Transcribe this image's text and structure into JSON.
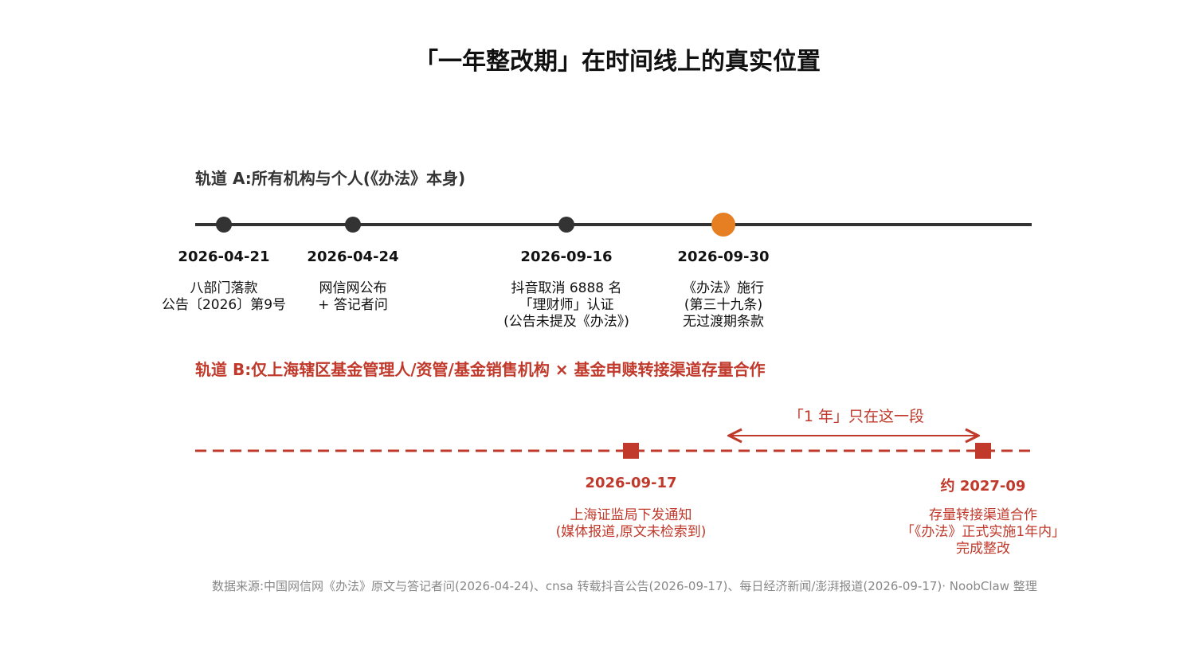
{
  "title": "「一年整改期」在时间线上的真实位置",
  "track_a": {
    "label": "轨道 A:所有机构与个人(《办法》本身)",
    "events": [
      {
        "date": "2026-04-21",
        "desc": [
          "八部门落款",
          "公告〔2026〕第9号"
        ]
      },
      {
        "date": "2026-04-24",
        "desc": [
          "网信网公布",
          "+ 答记者问"
        ]
      },
      {
        "date": "2026-09-16",
        "desc": [
          "抖音取消 6888 名",
          "「理财师」认证",
          "(公告未提及《办法》)"
        ]
      },
      {
        "date": "2026-09-30",
        "desc": [
          "《办法》施行",
          "(第三十九条)",
          "无过渡期条款"
        ],
        "highlight": true
      }
    ]
  },
  "track_b": {
    "label": "轨道 B:仅上海辖区基金管理人/资管/基金销售机构 × 基金申赎转接渠道存量合作",
    "span_label": "「1 年」只在这一段",
    "events": [
      {
        "date": "2026-09-17",
        "desc": [
          "上海证监局下发通知",
          "(媒体报道,原文未检索到)"
        ]
      },
      {
        "date": "约 2027-09",
        "desc": [
          "存量转接渠道合作",
          "「《办法》正式实施1年内」",
          "完成整改"
        ]
      }
    ]
  },
  "colors": {
    "dark": "#333333",
    "orange": "#e67e22",
    "red": "#c0392b"
  },
  "source": "数据来源:中国网信网《办法》原文与答记者问(2026-04-24)、cnsa 转载抖音公告(2026-09-17)、每日经济新闻/澎湃报道(2026-09-17)· NoobClaw 整理"
}
